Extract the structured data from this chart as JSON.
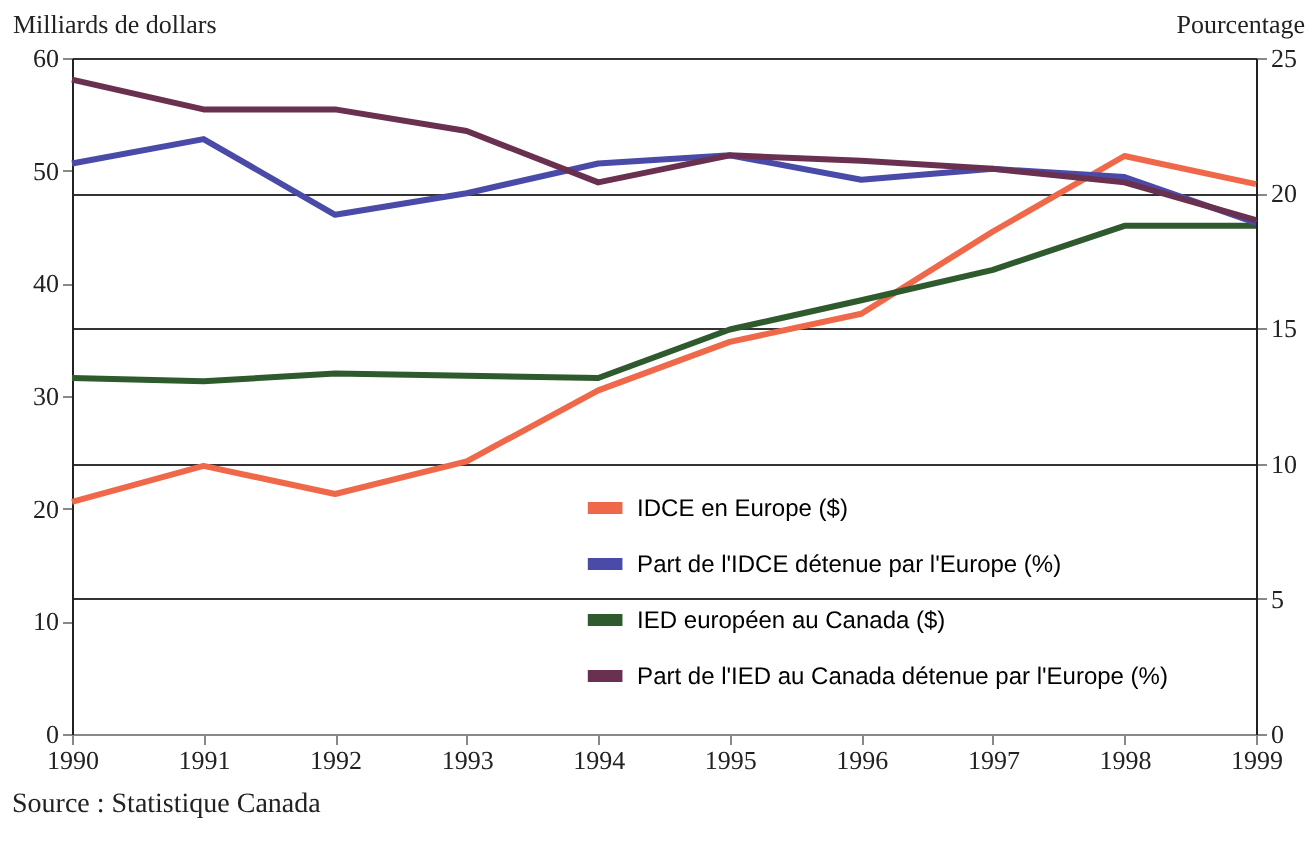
{
  "chart_data": {
    "type": "line",
    "ylabel": "Milliards de dollars",
    "y2label": "Pourcentage",
    "x": [
      1990,
      1991,
      1992,
      1993,
      1994,
      1995,
      1996,
      1997,
      1998,
      1999
    ],
    "xlim": [
      1990,
      1999
    ],
    "xticks": [
      1990,
      1991,
      1992,
      1993,
      1994,
      1995,
      1996,
      1997,
      1998,
      1999
    ],
    "ylim": [
      0,
      60
    ],
    "yticks": [
      0,
      10,
      20,
      30,
      40,
      50,
      60
    ],
    "y2lim": [
      0,
      25
    ],
    "y2ticks": [
      0,
      5,
      10,
      15,
      20,
      25
    ],
    "grid": "y",
    "legend": "bottom right",
    "marker": "none",
    "line_style": "solid",
    "series": [
      {
        "name": "IDCE en Europe ($)",
        "color": "#f0684a",
        "values": [
          20.6,
          23.8,
          21.3,
          24.2,
          30.5,
          34.8,
          37.3,
          44.6,
          51.3,
          48.8
        ]
      },
      {
        "name": "Part de l'IDCE détenue par l'Europe (%)",
        "color": "#4a4aa8",
        "axis": "y2",
        "values": [
          21.1,
          22.0,
          19.2,
          20.0,
          21.1,
          21.4,
          20.5,
          20.9,
          20.6,
          18.9
        ]
      },
      {
        "name": "IED européen au Canada ($)",
        "color": "#2e5a2e",
        "values": [
          31.6,
          31.3,
          32.0,
          31.8,
          31.6,
          35.9,
          38.5,
          41.2,
          45.1,
          45.1
        ]
      },
      {
        "name": "Part de l'IED au Canada détenue par l'Europe (%)",
        "color": "#6a3050",
        "axis": "y2",
        "values": [
          24.2,
          23.1,
          23.1,
          22.3,
          20.4,
          21.4,
          21.2,
          20.9,
          20.4,
          19.0
        ]
      }
    ],
    "annotations": [
      "Source : Statistique Canada"
    ]
  }
}
